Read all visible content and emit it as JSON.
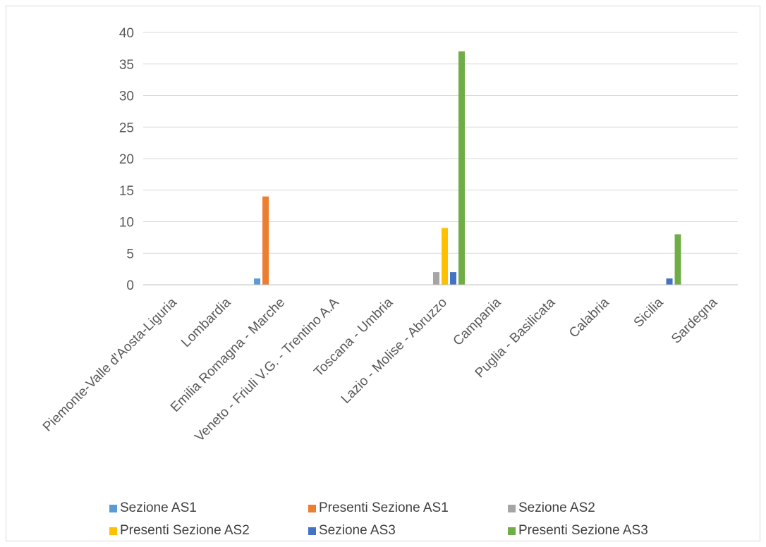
{
  "chart_data": {
    "type": "bar",
    "title": "",
    "xlabel": "",
    "ylabel": "",
    "ylim": [
      0,
      40
    ],
    "yticks": [
      0,
      5,
      10,
      15,
      20,
      25,
      30,
      35,
      40
    ],
    "grid": true,
    "legend_position": "bottom",
    "categories": [
      "Piemonte-Valle d'Aosta-Liguria",
      "Lombardia",
      "Emilia Romagna - Marche",
      "Veneto - Friuli V.G. - Trentino A.A",
      "Toscana - Umbria",
      "Lazio - Molise - Abruzzo",
      "Campania",
      "Puglia - Basilicata",
      "Calabria",
      "Sicilia",
      "Sardegna"
    ],
    "series": [
      {
        "name": "Sezione AS1",
        "color": "#5B9BD5",
        "values": [
          0,
          0,
          1,
          0,
          0,
          0,
          0,
          0,
          0,
          0,
          0
        ]
      },
      {
        "name": "Presenti Sezione AS1",
        "color": "#ED7D31",
        "values": [
          0,
          0,
          14,
          0,
          0,
          0,
          0,
          0,
          0,
          0,
          0
        ]
      },
      {
        "name": "Sezione AS2",
        "color": "#A5A5A5",
        "values": [
          0,
          0,
          0,
          0,
          0,
          2,
          0,
          0,
          0,
          0,
          0
        ]
      },
      {
        "name": "Presenti Sezione AS2",
        "color": "#FFC000",
        "values": [
          0,
          0,
          0,
          0,
          0,
          9,
          0,
          0,
          0,
          0,
          0
        ]
      },
      {
        "name": "Sezione AS3",
        "color": "#4472C4",
        "values": [
          0,
          0,
          0,
          0,
          0,
          2,
          0,
          0,
          0,
          1,
          0
        ]
      },
      {
        "name": "Presenti Sezione AS3",
        "color": "#70AD47",
        "values": [
          0,
          0,
          0,
          0,
          0,
          37,
          0,
          0,
          0,
          8,
          0
        ]
      }
    ]
  }
}
